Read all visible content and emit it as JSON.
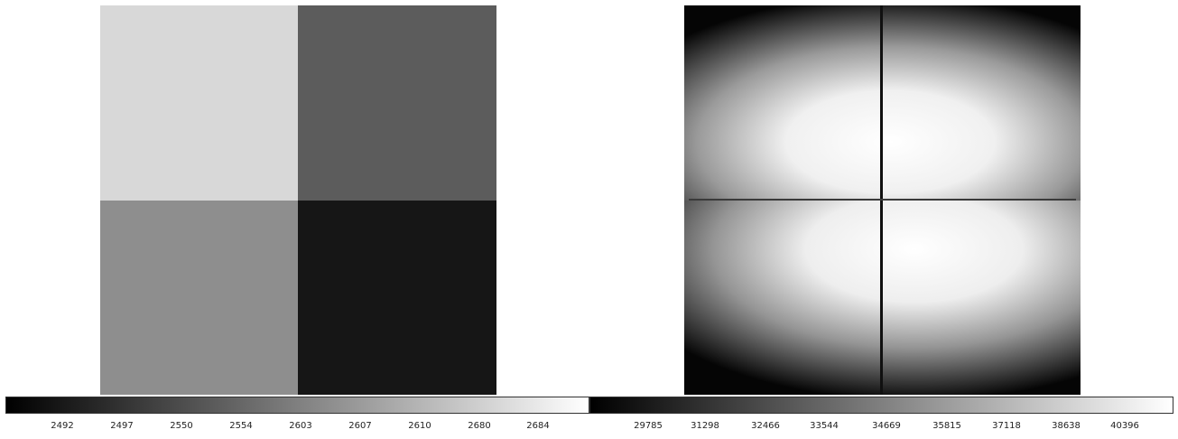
{
  "left_panel": {
    "quadrant_gray_levels": {
      "top_left": "#d8d8d8",
      "top_right": "#5c5c5c",
      "bottom_left": "#8e8e8e",
      "bottom_right": "#151515"
    },
    "colorbar": {
      "gradient_from": "#000000",
      "gradient_to": "#ffffff",
      "ticks": [
        "2492",
        "2497",
        "2550",
        "2554",
        "2603",
        "2607",
        "2610",
        "2680",
        "2684"
      ]
    }
  },
  "right_panel": {
    "vignette_center_color": "#ffffff",
    "vignette_edge_color": "#050505",
    "divider_color": "#101010",
    "colorbar": {
      "gradient_from": "#000000",
      "gradient_to": "#ffffff",
      "ticks": [
        "29785",
        "31298",
        "32466",
        "33544",
        "34669",
        "35815",
        "37118",
        "38638",
        "40396"
      ]
    }
  }
}
